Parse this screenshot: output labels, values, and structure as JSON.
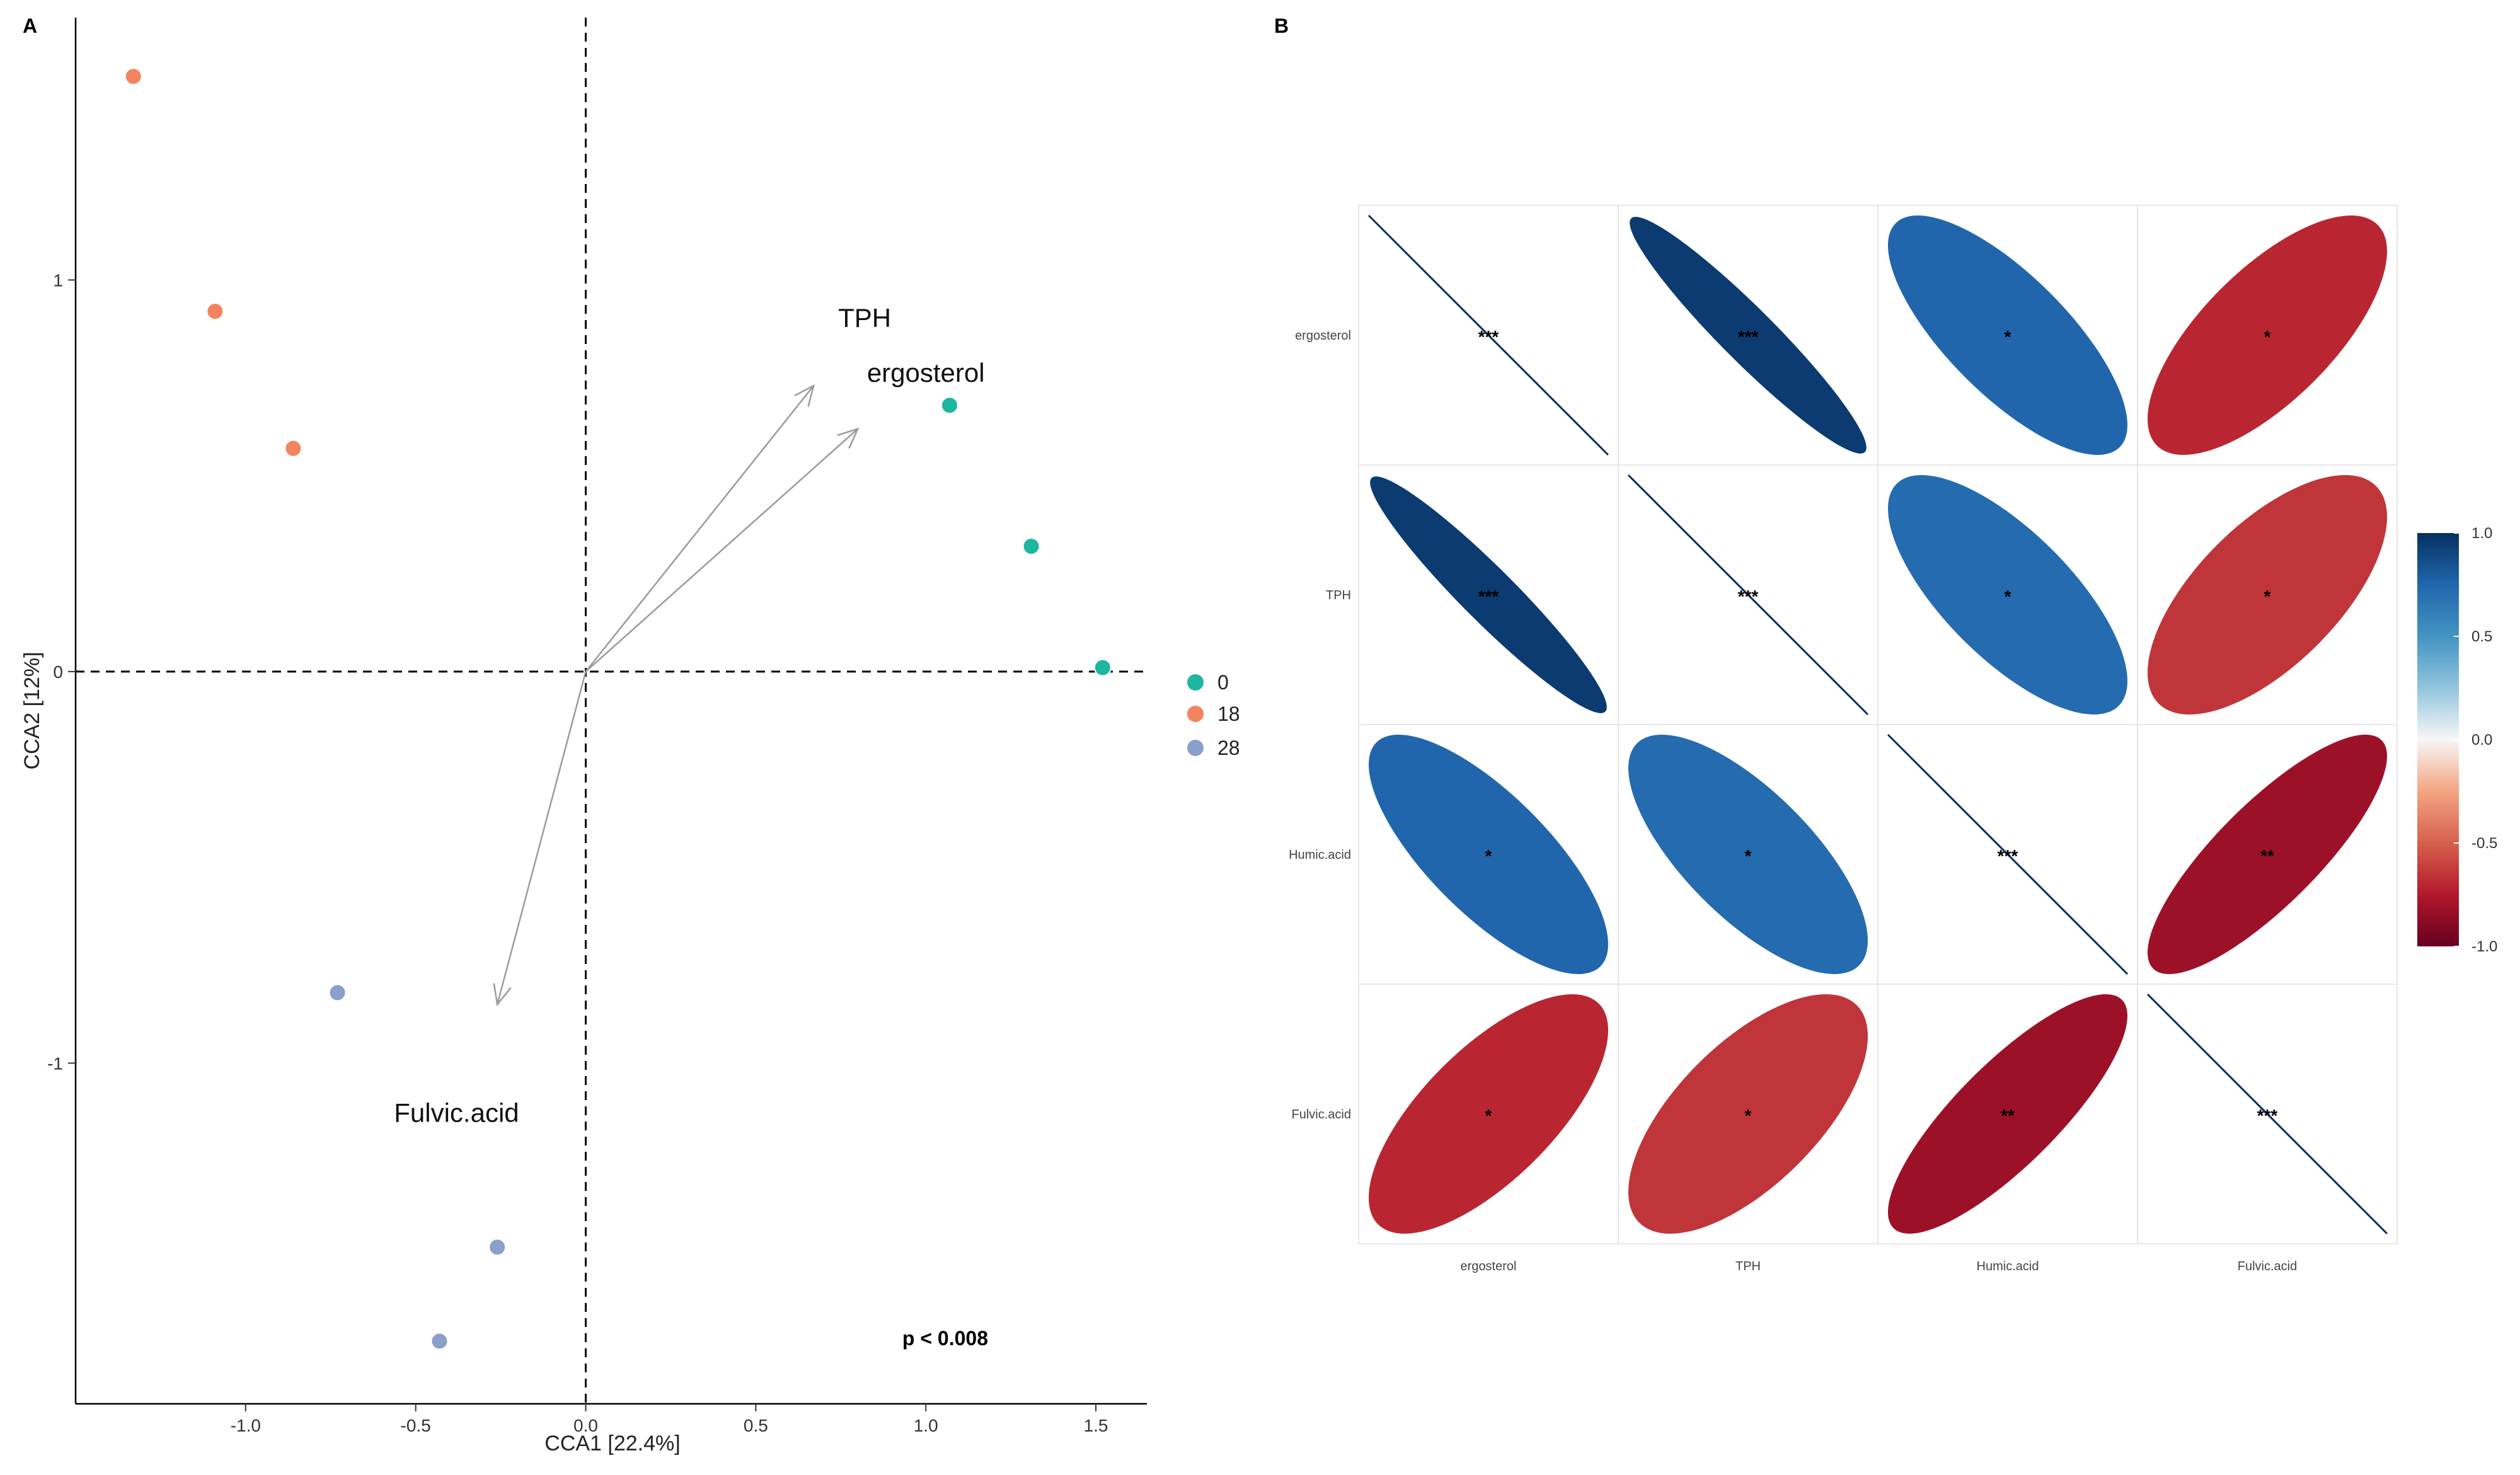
{
  "panels": {
    "a_label": "A",
    "b_label": "B"
  },
  "colors": {
    "group_0": "#1db6a0",
    "group_18": "#f4845f",
    "group_28": "#8b9fcb",
    "arrow": "#9a9a9a",
    "negative_strong": "#67001f",
    "neutral": "#f7f7f7",
    "positive_strong": "#053061"
  },
  "chart_data": [
    {
      "type": "scatter",
      "panel": "A",
      "title": "",
      "xlabel": "CCA1  [22.4%]",
      "ylabel": "CCA2  [12%]",
      "xlim": [
        -1.5,
        1.65
      ],
      "ylim": [
        -1.87,
        1.67
      ],
      "x_ticks": [
        -1.0,
        -0.5,
        0.0,
        0.5,
        1.0,
        1.5
      ],
      "x_tick_labels": [
        "-1.0",
        "-0.5",
        "0.0",
        "0.5",
        "1.0",
        "1.5"
      ],
      "y_ticks": [
        1,
        0,
        -1
      ],
      "y_tick_labels": [
        "1",
        "0",
        "-1"
      ],
      "reference_lines": {
        "x": 0,
        "y": 0,
        "style": "dashed"
      },
      "legend": {
        "position": "right",
        "entries": [
          "0",
          "18",
          "28"
        ]
      },
      "series": [
        {
          "name": "0",
          "points": [
            {
              "x": 1.07,
              "y": 0.68
            },
            {
              "x": 1.31,
              "y": 0.32
            },
            {
              "x": 1.52,
              "y": 0.01
            }
          ]
        },
        {
          "name": "18",
          "points": [
            {
              "x": -1.33,
              "y": 1.52
            },
            {
              "x": -1.09,
              "y": 0.92
            },
            {
              "x": -0.86,
              "y": 0.57
            }
          ]
        },
        {
          "name": "28",
          "points": [
            {
              "x": -0.73,
              "y": -0.82
            },
            {
              "x": -0.26,
              "y": -1.47
            },
            {
              "x": -0.43,
              "y": -1.71
            }
          ]
        }
      ],
      "vectors": [
        {
          "name": "TPH",
          "x": 0.67,
          "y": 0.73,
          "label_x": 0.82,
          "label_y": 0.88
        },
        {
          "name": "ergosterol",
          "x": 0.8,
          "y": 0.62,
          "label_x": 1.0,
          "label_y": 0.74
        },
        {
          "name": "Fulvic.acid",
          "x": -0.26,
          "y": -0.85,
          "label_x": -0.38,
          "label_y": -1.15
        }
      ],
      "annotation": "p < 0.008"
    },
    {
      "type": "heatmap",
      "panel": "B",
      "style": "correlation-ellipse",
      "variables": [
        "ergosterol",
        "TPH",
        "Humic.acid",
        "Fulvic.acid"
      ],
      "matrix": [
        [
          1.0,
          0.95,
          0.75,
          -0.7
        ],
        [
          0.95,
          1.0,
          0.72,
          -0.65
        ],
        [
          0.75,
          0.72,
          1.0,
          -0.82
        ],
        [
          -0.7,
          -0.65,
          -0.82,
          1.0
        ]
      ],
      "significance": [
        [
          "***",
          "***",
          "*",
          "*"
        ],
        [
          "***",
          "***",
          "*",
          "*"
        ],
        [
          "*",
          "*",
          "***",
          "**"
        ],
        [
          "*",
          "*",
          "**",
          "***"
        ]
      ],
      "colorbar": {
        "range": [
          -1.0,
          1.0
        ],
        "ticks": [
          1.0,
          0.5,
          0.0,
          -0.5,
          -1.0
        ],
        "tick_labels": [
          "1.0",
          "0.5",
          "0.0",
          "-0.5",
          "-1.0"
        ]
      }
    }
  ]
}
